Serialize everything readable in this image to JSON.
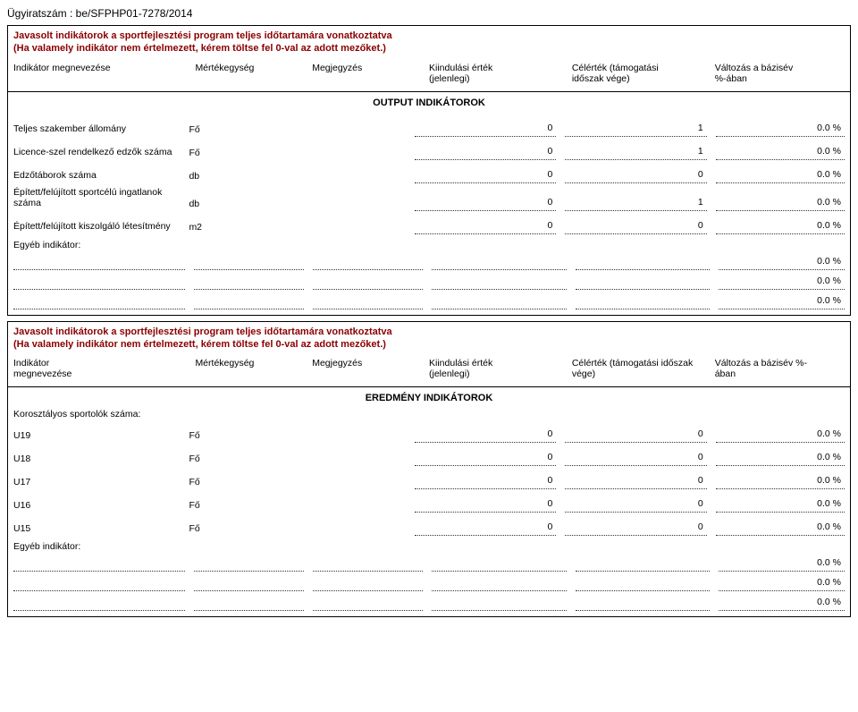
{
  "docNumber": "Ügyiratszám : be/SFPHP01-7278/2014",
  "section1": {
    "title1": "Javasolt indikátorok a sportfejlesztési program teljes időtartamára vonatkoztatva",
    "title2": "(Ha valamely indikátor nem értelmezett, kérem töltse fel 0-val az adott mezőket.)",
    "headers": {
      "c1": "Indikátor megnevezése",
      "c2": "Mértékegység",
      "c3": "Megjegyzés",
      "c4a": "Kiindulási érték",
      "c4b": "(jelenlegi)",
      "c5a": "Célérték (támogatási",
      "c5b": "időszak vége)",
      "c6a": "Változás a bázisév",
      "c6b": "%-ában"
    },
    "centerTitle": "OUTPUT INDIKÁTOROK",
    "rows": [
      {
        "label": "Teljes szakember állomány",
        "unit": "Fő",
        "v1": "0",
        "v2": "1",
        "pct": "0.0 %"
      },
      {
        "label": "Licence-szel rendelkező edzők száma",
        "unit": "Fő",
        "v1": "0",
        "v2": "1",
        "pct": "0.0 %"
      },
      {
        "label": "Edzőtáborok száma",
        "unit": "db",
        "v1": "0",
        "v2": "0",
        "pct": "0.0 %"
      },
      {
        "label": "Épített/felújított sportcélú ingatlanok száma",
        "unit": "db",
        "v1": "0",
        "v2": "1",
        "pct": "0.0 %"
      },
      {
        "label": "Épített/felújított kiszolgáló létesítmény",
        "unit": "m2",
        "v1": "0",
        "v2": "0",
        "pct": "0.0 %"
      }
    ],
    "otherLabel": "Egyéb indikátor:",
    "emptyRows": [
      {
        "pct": "0.0 %"
      },
      {
        "pct": "0.0 %"
      },
      {
        "pct": "0.0 %"
      }
    ]
  },
  "section2": {
    "title1": "Javasolt indikátorok a sportfejlesztési program teljes időtartamára vonatkoztatva",
    "title2": "(Ha valamely indikátor nem értelmezett, kérem töltse fel 0-val az adott mezőket.)",
    "headers": {
      "c1a": "Indikátor",
      "c1b": "megnevezése",
      "c2": "Mértékegység",
      "c3": "Megjegyzés",
      "c4a": "Kiindulási érték",
      "c4b": "(jelenlegi)",
      "c5a": "Célérték (támogatási időszak",
      "c5b": "vége)",
      "c6a": "Változás a bázisév %-",
      "c6b": "ában"
    },
    "centerTitle": "EREDMÉNY INDIKÁTOROK",
    "subLabel": "Korosztályos sportolók száma:",
    "rows": [
      {
        "label": "U19",
        "unit": "Fő",
        "v1": "0",
        "v2": "0",
        "pct": "0.0 %"
      },
      {
        "label": "U18",
        "unit": "Fő",
        "v1": "0",
        "v2": "0",
        "pct": "0.0 %"
      },
      {
        "label": "U17",
        "unit": "Fő",
        "v1": "0",
        "v2": "0",
        "pct": "0.0 %"
      },
      {
        "label": "U16",
        "unit": "Fő",
        "v1": "0",
        "v2": "0",
        "pct": "0.0 %"
      },
      {
        "label": "U15",
        "unit": "Fő",
        "v1": "0",
        "v2": "0",
        "pct": "0.0 %"
      }
    ],
    "otherLabel": "Egyéb indikátor:",
    "emptyRows": [
      {
        "pct": "0.0 %"
      },
      {
        "pct": "0.0 %"
      },
      {
        "pct": "0.0 %"
      }
    ]
  },
  "colors": {
    "titleColor": "#8B0000",
    "border": "#000000",
    "dotted": "#333333",
    "background": "#ffffff"
  }
}
